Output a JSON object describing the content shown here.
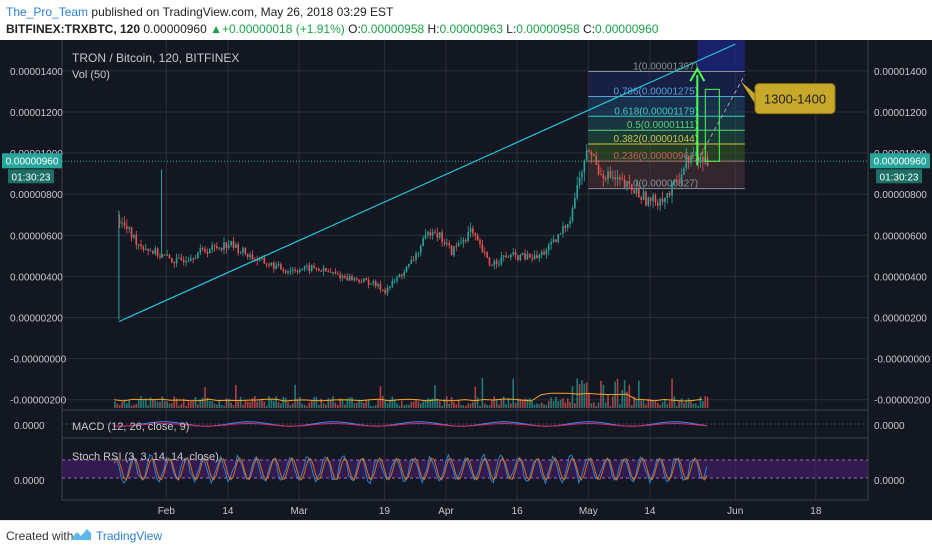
{
  "header": {
    "author": "The_Pro_Team",
    "published": "published on TradingView.com, May 26, 2018 03:29 EST",
    "symbol": "BITFINEX:TRXBTC, 120",
    "last": "0.00000960",
    "change": "+0.00000018 (+1.91%)",
    "o_label": "O:",
    "o_value": "0.00000958",
    "h_label": "H:",
    "h_value": "0.00000963",
    "l_label": "L:",
    "l_value": "0.00000958",
    "c_label": "C:",
    "c_value": "0.00000960"
  },
  "footer": {
    "created": "Created with",
    "brand": "TradingView"
  },
  "colors": {
    "background": "#131722",
    "grid": "#2a2e39",
    "text": "#c8c8c8",
    "up": "#26a69a",
    "down": "#ef5350",
    "accent": "#00e5ff",
    "callout": "#c8a82b"
  },
  "chart_data": {
    "type": "candlestick",
    "title": "TRON / Bitcoin, 120, BITFINEX",
    "volume_label": "Vol (50)",
    "y_ticks": [
      "0.00001400",
      "0.00001200",
      "0.00001000",
      "0.00000800",
      "0.00000600",
      "0.00000400",
      "0.00000200",
      "-0.00000000",
      "-0.00000200"
    ],
    "y_range": [
      -2.5e-06,
      1.55e-05
    ],
    "x_ticks": [
      "Feb",
      "14",
      "Mar",
      "19",
      "Apr",
      "16",
      "May",
      "14",
      "Jun",
      "18"
    ],
    "price_label": "0.00000960",
    "countdown": "01:30:23",
    "price_path": [
      [
        "Jan 22",
        6.7e-06
      ],
      [
        "Jan 26",
        5.6e-06
      ],
      [
        "Jan 30",
        5.1e-06
      ],
      [
        "Feb 3",
        4.7e-06
      ],
      [
        "Feb 8",
        5.2e-06
      ],
      [
        "Feb 14",
        5.6e-06
      ],
      [
        "Feb 20",
        4.8e-06
      ],
      [
        "Feb 26",
        4.3e-06
      ],
      [
        "Mar 4",
        4.4e-06
      ],
      [
        "Mar 10",
        4e-06
      ],
      [
        "Mar 16",
        3.7e-06
      ],
      [
        "Mar 19",
        3.3e-06
      ],
      [
        "Mar 24",
        4.5e-06
      ],
      [
        "Mar 29",
        6.4e-06
      ],
      [
        "Apr 2",
        5.2e-06
      ],
      [
        "Apr 6",
        6.2e-06
      ],
      [
        "Apr 10",
        4.6e-06
      ],
      [
        "Apr 14",
        5e-06
      ],
      [
        "Apr 20",
        4.9e-06
      ],
      [
        "Apr 24",
        5.7e-06
      ],
      [
        "Apr 27",
        6.9e-06
      ],
      [
        "Apr 29",
        8.8e-06
      ],
      [
        "May 1",
        1.02e-05
      ],
      [
        "May 3",
        9.2e-06
      ],
      [
        "May 7",
        8.6e-06
      ],
      [
        "May 11",
        8.1e-06
      ],
      [
        "May 14",
        7.6e-06
      ],
      [
        "May 18",
        8e-06
      ],
      [
        "May 22",
        9.8e-06
      ],
      [
        "May 26",
        9.6e-06
      ]
    ],
    "trendline": {
      "from": [
        "Jan 22",
        1.8e-06
      ],
      "to": [
        "Jun 1",
        1.53e-05
      ]
    },
    "fib_levels": [
      {
        "label": "1(0.00001397)",
        "value": 1.397e-05
      },
      {
        "label": "0.786(0.00001275)",
        "value": 1.275e-05
      },
      {
        "label": "0.618(0.00001179)",
        "value": 1.179e-05
      },
      {
        "label": "0.5(0.00001111)",
        "value": 1.111e-05
      },
      {
        "label": "0.382(0.00001044)",
        "value": 1.044e-05
      },
      {
        "label": "0.236(0.00000961)",
        "value": 9.61e-06
      },
      {
        "label": "0(0.00000827)",
        "value": 8.27e-06
      }
    ],
    "target_label": "1300-1400",
    "macd": {
      "label": "MACD (12, 26, close, 9)",
      "tick": "0.0000"
    },
    "stoch_rsi": {
      "label": "Stoch RSI (3, 3, 14, 14, close)",
      "tick": "0.0000"
    },
    "grid": true
  }
}
